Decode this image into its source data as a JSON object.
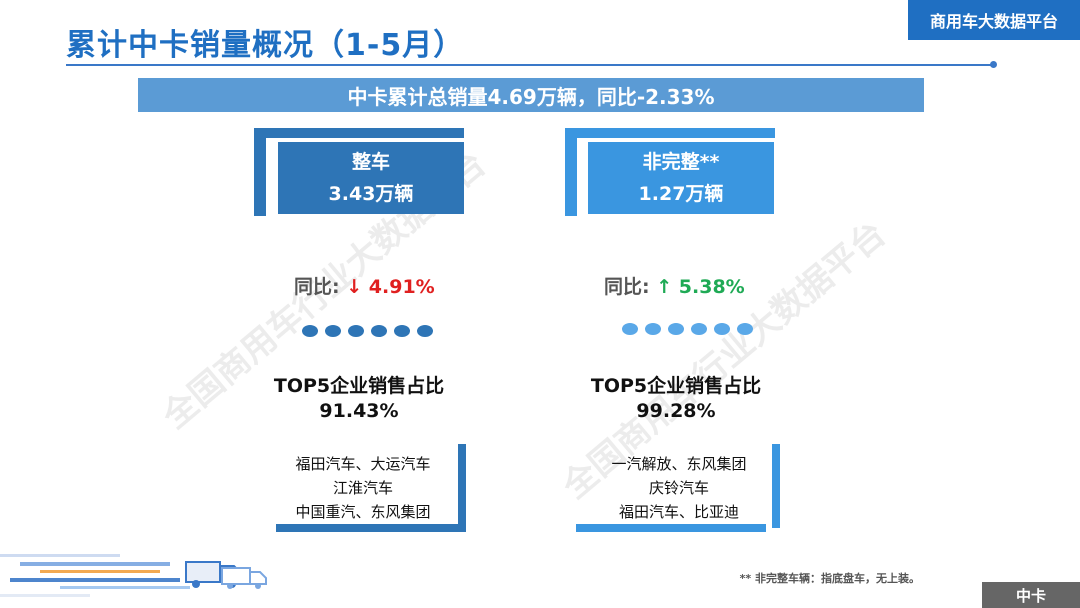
{
  "header": {
    "title": "累计中卡销量概况（1-5月）",
    "brand": "商用车大数据平台"
  },
  "summary": "中卡累计总销量4.69万辆，同比-2.33%",
  "left_panel": {
    "category": "整车",
    "volume": "3.43万辆",
    "yoy_label": "同比:",
    "yoy_arrow": "↓",
    "yoy_value": "4.91%",
    "top5_label": "TOP5企业销售占比",
    "top5_value": "91.43%",
    "firms": [
      "福田汽车、大运汽车",
      "江淮汽车",
      "中国重汽、东风集团"
    ]
  },
  "right_panel": {
    "category": "非完整**",
    "volume": "1.27万辆",
    "yoy_label": "同比:",
    "yoy_arrow": "↑",
    "yoy_value": "5.38%",
    "top5_label": "TOP5企业销售占比",
    "top5_value": "99.28%",
    "firms": [
      "一汽解放、东风集团",
      "庆铃汽车",
      "福田汽车、比亚迪"
    ]
  },
  "watermarks": [
    "全国商用车行业大数据平台",
    "全国商用车行业大数据平台"
  ],
  "footnote": "** 非完整车辆：指底盘车，无上装。",
  "corner_tag": "中卡",
  "colors": {
    "primary": "#1f6fc2",
    "left_box": "#2e75b6",
    "right_box": "#3a96e0",
    "summary": "#5b9bd5",
    "down": "#e02020",
    "up": "#1faa55"
  }
}
